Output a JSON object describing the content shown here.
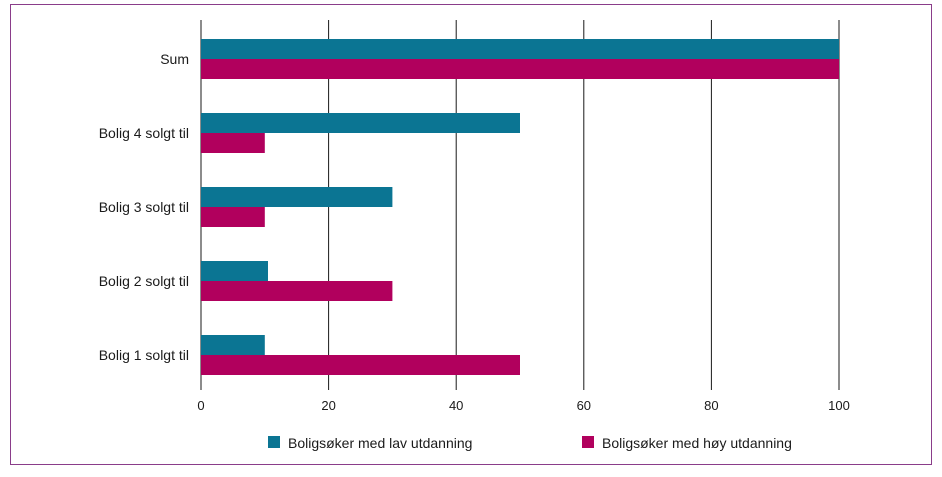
{
  "chart_data": {
    "type": "bar",
    "orientation": "horizontal",
    "categories": [
      "Sum",
      "Bolig 4 solgt til",
      "Bolig 3 solgt til",
      "Bolig 2 solgt til",
      "Bolig 1 solgt til"
    ],
    "series": [
      {
        "name": "Boligsøker med lav utdanning",
        "color": "#0b7593",
        "values": [
          100,
          50,
          30,
          10.5,
          10
        ]
      },
      {
        "name": "Boligsøker med høy utdanning",
        "color": "#b1005d",
        "values": [
          100,
          10,
          10,
          30,
          50
        ]
      }
    ],
    "xlim": [
      0,
      100
    ],
    "xticks": [
      0,
      20,
      40,
      60,
      80,
      100
    ],
    "grid": true,
    "legend_position": "bottom"
  }
}
